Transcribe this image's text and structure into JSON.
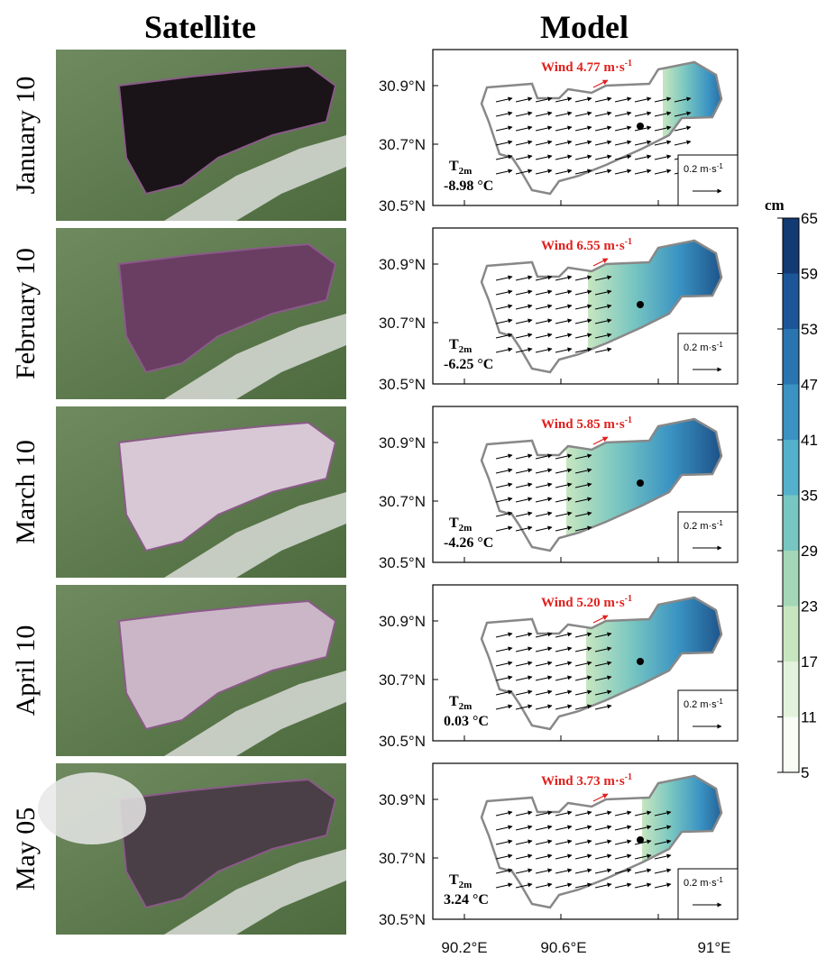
{
  "columns": [
    "Satellite",
    "Model"
  ],
  "rows": [
    {
      "label": "January 10",
      "wind": "Wind 4.77 m·s",
      "temp": "-8.98 °C"
    },
    {
      "label": "February 10",
      "wind": "Wind 6.55 m·s",
      "temp": "-6.25 °C"
    },
    {
      "label": "March 10",
      "wind": "Wind 5.85 m·s",
      "temp": "-4.26 °C"
    },
    {
      "label": "April 10",
      "wind": "Wind 5.20 m·s",
      "temp": "0.03 °C"
    },
    {
      "label": "May 05",
      "wind": "Wind 3.73 m·s",
      "temp": "3.24 °C"
    }
  ],
  "superscript": "-1",
  "wind_scale": "0.2 m·s",
  "t_label": "T",
  "t_sub": "2m",
  "yticks": [
    "30.9°N",
    "30.7°N",
    "30.5°N"
  ],
  "xticks": [
    "90.2°E",
    "90.6°E",
    "91°E"
  ],
  "colorbar": {
    "unit": "cm",
    "ticks": [
      5,
      11,
      17,
      23,
      29,
      35,
      41,
      47,
      53,
      59,
      65
    ],
    "colors": [
      "#f7fcf5",
      "#e3f2dc",
      "#c7e6c0",
      "#a3d7b7",
      "#78c6c1",
      "#54b1cb",
      "#3a93c3",
      "#2a74b0",
      "#1c5698",
      "#123a73"
    ]
  }
}
